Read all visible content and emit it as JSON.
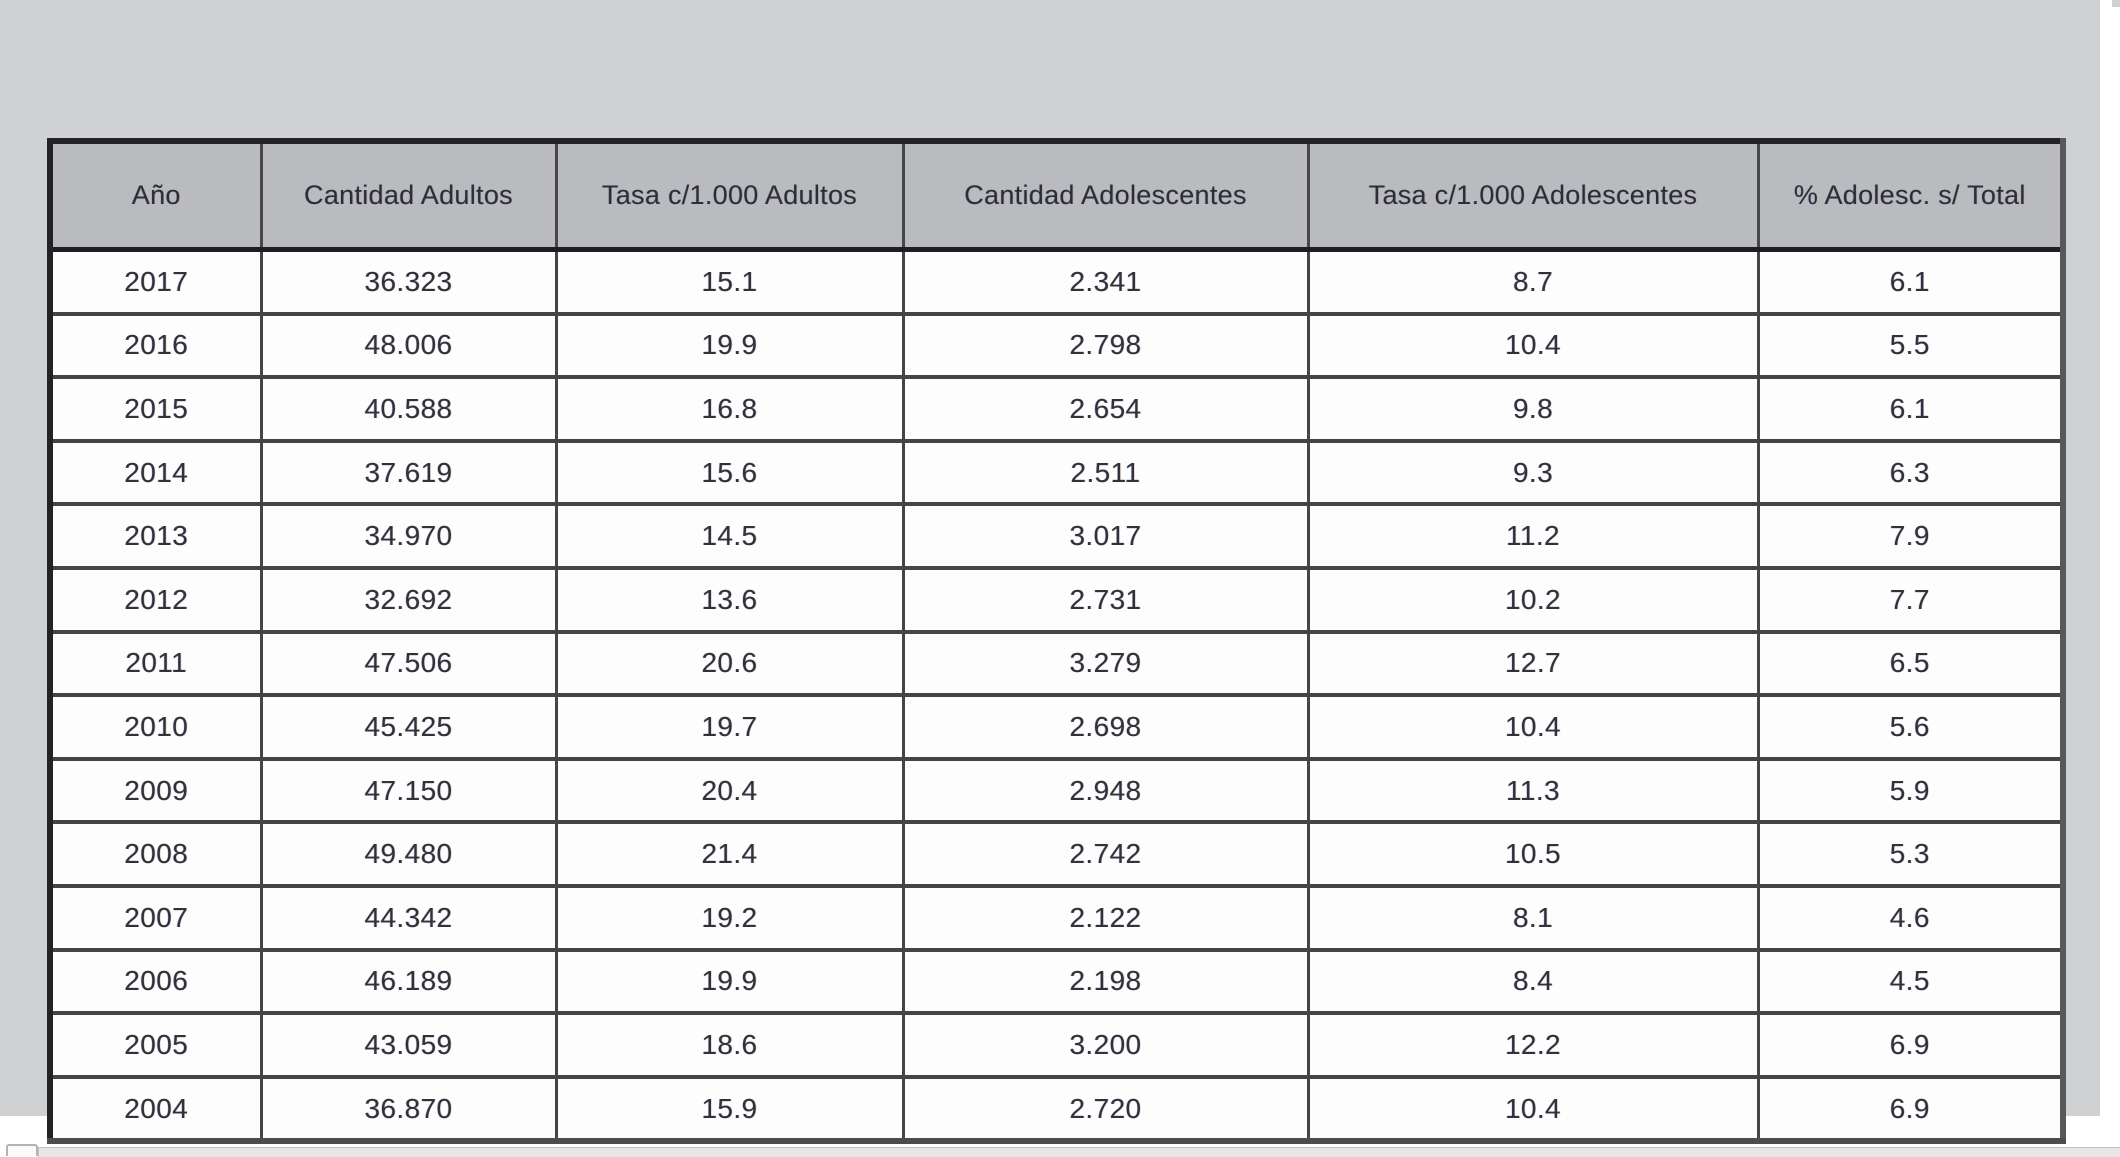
{
  "document": {
    "table": {
      "columns": [
        "Año",
        "Cantidad Adultos",
        "Tasa c/1.000 Adultos",
        "Cantidad Adolescentes",
        "Tasa c/1.000 Adolescentes",
        "% Adolesc. s/ Total"
      ],
      "rows": [
        {
          "cells": [
            "2017",
            "36.323",
            "15.1",
            "2.341",
            "8.7",
            "6.1"
          ]
        },
        {
          "cells": [
            "2016",
            "48.006",
            "19.9",
            "2.798",
            "10.4",
            "5.5"
          ]
        },
        {
          "cells": [
            "2015",
            "40.588",
            "16.8",
            "2.654",
            "9.8",
            "6.1"
          ]
        },
        {
          "cells": [
            "2014",
            "37.619",
            "15.6",
            "2.511",
            "9.3",
            "6.3"
          ]
        },
        {
          "cells": [
            "2013",
            "34.970",
            "14.5",
            "3.017",
            "11.2",
            "7.9"
          ]
        },
        {
          "cells": [
            "2012",
            "32.692",
            "13.6",
            "2.731",
            "10.2",
            "7.7"
          ]
        },
        {
          "cells": [
            "2011",
            "47.506",
            "20.6",
            "3.279",
            "12.7",
            "6.5"
          ]
        },
        {
          "cells": [
            "2010",
            "45.425",
            "19.7",
            "2.698",
            "10.4",
            "5.6"
          ]
        },
        {
          "cells": [
            "2009",
            "47.150",
            "20.4",
            "2.948",
            "11.3",
            "5.9"
          ]
        },
        {
          "cells": [
            "2008",
            "49.480",
            "21.4",
            "2.742",
            "10.5",
            "5.3"
          ]
        },
        {
          "cells": [
            "2007",
            "44.342",
            "19.2",
            "2.122",
            "8.1",
            "4.6"
          ]
        },
        {
          "cells": [
            "2006",
            "46.189",
            "19.9",
            "2.198",
            "8.4",
            "4.5"
          ]
        },
        {
          "cells": [
            "2005",
            "43.059",
            "18.6",
            "3.200",
            "12.2",
            "6.9"
          ]
        },
        {
          "cells": [
            "2004",
            "36.870",
            "15.9",
            "2.720",
            "10.4",
            "6.9"
          ]
        }
      ]
    },
    "colors": {
      "page_gray": "#d0d1d3",
      "header_gray": "#b9bbbe",
      "cell_white": "#fdfdfe",
      "border_dark": "#232325",
      "text_dark": "#31313b"
    }
  }
}
